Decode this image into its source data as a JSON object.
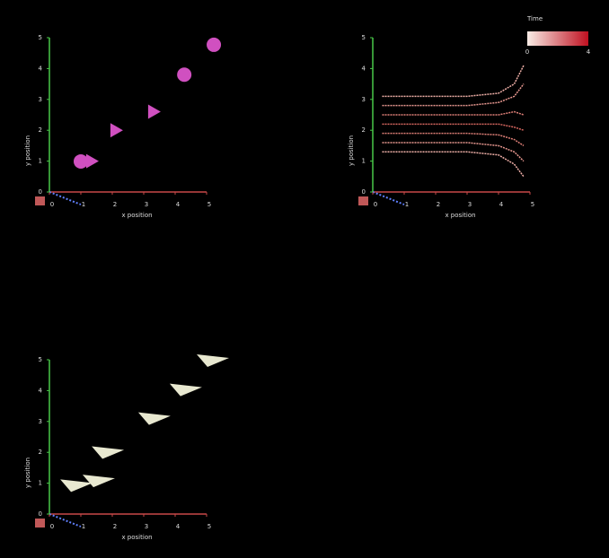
{
  "chart_data": [
    {
      "type": "scatter",
      "x_label": "x position",
      "y_label": "y position",
      "x": [
        1.0,
        1.37,
        2.14,
        3.34,
        4.29,
        5.23
      ],
      "y": [
        0.99,
        1.0,
        2.0,
        2.6,
        3.8,
        4.77
      ],
      "markers": [
        "sphere",
        "cone",
        "cone",
        "cone",
        "sphere",
        "sphere"
      ],
      "color": "#d050c0",
      "xlim": [
        0,
        5
      ],
      "ylim": [
        0,
        5
      ],
      "xticks": [
        0,
        1,
        2,
        3,
        4,
        5
      ],
      "yticks": [
        0,
        1,
        2,
        3,
        4,
        5
      ]
    },
    {
      "type": "line",
      "x_label": "x position",
      "y_label": "y position",
      "x": [
        0.3,
        1,
        2,
        3,
        4,
        4.5,
        4.8
      ],
      "series": [
        {
          "color": "#f0b0a8",
          "values": [
            3.1,
            3.1,
            3.1,
            3.1,
            3.2,
            3.5,
            4.1
          ]
        },
        {
          "color": "#e89890",
          "values": [
            2.8,
            2.8,
            2.8,
            2.8,
            2.9,
            3.1,
            3.5
          ]
        },
        {
          "color": "#e08078",
          "values": [
            2.5,
            2.5,
            2.5,
            2.5,
            2.5,
            2.6,
            2.5
          ]
        },
        {
          "color": "#d86860",
          "values": [
            2.2,
            2.2,
            2.2,
            2.2,
            2.2,
            2.1,
            2.0
          ]
        },
        {
          "color": "#e08078",
          "values": [
            1.9,
            1.9,
            1.9,
            1.9,
            1.85,
            1.7,
            1.5
          ]
        },
        {
          "color": "#e89890",
          "values": [
            1.6,
            1.6,
            1.6,
            1.6,
            1.5,
            1.3,
            1.0
          ]
        },
        {
          "color": "#f0b0a8",
          "values": [
            1.3,
            1.3,
            1.3,
            1.3,
            1.2,
            0.9,
            0.5
          ]
        }
      ],
      "colorbar": {
        "title": "Time",
        "ticks": [
          0,
          4
        ],
        "colors": [
          "#f8ece6",
          "#c01020"
        ]
      },
      "xlim": [
        0,
        5
      ],
      "ylim": [
        0,
        5
      ],
      "xticks": [
        0,
        1,
        2,
        3,
        4,
        5
      ],
      "yticks": [
        0,
        1,
        2,
        3,
        4,
        5
      ]
    },
    {
      "type": "scatter",
      "x_label": "x position",
      "y_label": "y position",
      "x": [
        0.86,
        1.57,
        1.86,
        3.34,
        4.34,
        5.2
      ],
      "y": [
        0.95,
        1.1,
        2.02,
        3.12,
        4.05,
        5.0
      ],
      "markers": [
        "plane",
        "plane",
        "plane",
        "plane",
        "plane",
        "plane"
      ],
      "color": "#e8e8d0",
      "xlim": [
        0,
        5
      ],
      "ylim": [
        0,
        5
      ],
      "xticks": [
        0,
        1,
        2,
        3,
        4,
        5
      ],
      "yticks": [
        0,
        1,
        2,
        3,
        4,
        5
      ]
    }
  ]
}
